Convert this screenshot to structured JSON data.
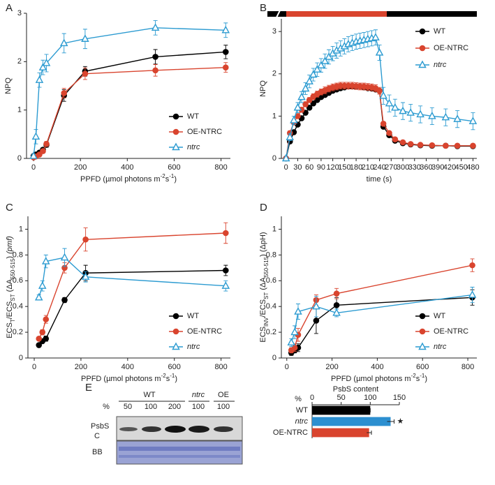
{
  "chart_data": [
    {
      "type": "line",
      "label": "A",
      "ylabel": [
        {
          "text": "NPQ"
        }
      ],
      "xlabel": [
        {
          "text": "PPFD (µmol photons m"
        },
        {
          "text": "-2",
          "sup": true
        },
        {
          "text": "s"
        },
        {
          "text": "-1",
          "sup": true
        },
        {
          "text": ")"
        }
      ],
      "x": [
        0,
        10,
        25,
        40,
        55,
        130,
        220,
        520,
        820
      ],
      "xlim": [
        -30,
        840
      ],
      "xticks": [
        0,
        200,
        400,
        600,
        800
      ],
      "ylim": [
        0,
        3
      ],
      "yticks": [
        0,
        1,
        2,
        3
      ],
      "legend": "lower right",
      "series": [
        {
          "name": "WT",
          "color": "#000000",
          "marker": "circle",
          "filled": true,
          "values": [
            0.05,
            0.08,
            0.12,
            0.18,
            0.28,
            1.3,
            1.8,
            2.1,
            2.2
          ],
          "errors": [
            0.02,
            0.02,
            0.03,
            0.04,
            0.05,
            0.12,
            0.1,
            0.15,
            0.14
          ]
        },
        {
          "name": "OE-NTRC",
          "color": "#d9442e",
          "marker": "circle",
          "filled": true,
          "values": [
            0.02,
            0.04,
            0.08,
            0.15,
            0.3,
            1.35,
            1.75,
            1.82,
            1.88
          ],
          "errors": [
            0.02,
            0.02,
            0.03,
            0.04,
            0.05,
            0.1,
            0.12,
            0.12,
            0.1
          ]
        },
        {
          "name": "ntrc",
          "italic": true,
          "color": "#2c9bd1",
          "marker": "triangle",
          "filled": false,
          "values": [
            0.05,
            0.45,
            1.62,
            1.88,
            1.97,
            2.38,
            2.47,
            2.7,
            2.65
          ],
          "errors": [
            0.03,
            0.15,
            0.15,
            0.15,
            0.18,
            0.2,
            0.2,
            0.15,
            0.15
          ]
        }
      ]
    },
    {
      "type": "line",
      "label": "B",
      "ylabel": [
        {
          "text": "NPQ"
        }
      ],
      "xlabel": [
        {
          "text": "time (s)"
        }
      ],
      "x": [
        0,
        10,
        20,
        30,
        40,
        50,
        60,
        70,
        80,
        90,
        100,
        110,
        120,
        130,
        140,
        150,
        160,
        170,
        180,
        190,
        200,
        210,
        220,
        230,
        240,
        250,
        265,
        280,
        300,
        320,
        345,
        375,
        410,
        440,
        480
      ],
      "xlim": [
        -12,
        490
      ],
      "xticks": [
        0,
        30,
        60,
        90,
        120,
        150,
        180,
        210,
        240,
        270,
        300,
        330,
        360,
        390,
        420,
        450,
        480
      ],
      "ylim": [
        0,
        3.3
      ],
      "yticks": [
        0,
        1,
        2,
        3
      ],
      "legend": "upper right",
      "series": [
        {
          "name": "WT",
          "color": "#000000",
          "marker": "circle",
          "filled": true,
          "values": [
            0,
            0.4,
            0.62,
            0.8,
            0.95,
            1.08,
            1.2,
            1.3,
            1.38,
            1.45,
            1.5,
            1.55,
            1.6,
            1.63,
            1.66,
            1.68,
            1.7,
            1.7,
            1.7,
            1.7,
            1.68,
            1.66,
            1.65,
            1.63,
            1.6,
            0.75,
            0.55,
            0.42,
            0.36,
            0.33,
            0.31,
            0.3,
            0.3,
            0.29,
            0.29
          ]
        },
        {
          "name": "OE-NTRC",
          "color": "#d9442e",
          "marker": "circle",
          "filled": true,
          "values": [
            0,
            0.6,
            0.85,
            1.0,
            1.15,
            1.28,
            1.38,
            1.46,
            1.52,
            1.57,
            1.61,
            1.65,
            1.68,
            1.7,
            1.72,
            1.72,
            1.72,
            1.72,
            1.71,
            1.7,
            1.7,
            1.69,
            1.68,
            1.66,
            1.6,
            0.82,
            0.6,
            0.45,
            0.38,
            0.34,
            0.32,
            0.31,
            0.3,
            0.3,
            0.3
          ],
          "errors": [
            0,
            0.05,
            0.05,
            0.05,
            0.06,
            0.06,
            0.06,
            0.07,
            0.07,
            0.07,
            0.08,
            0.08,
            0.08,
            0.08,
            0.08,
            0.08,
            0.08,
            0.08,
            0.08,
            0.08,
            0.08,
            0.08,
            0.08,
            0.08,
            0.08,
            0.05,
            0.04,
            0.04,
            0.03,
            0.03,
            0.03,
            0.03,
            0.03,
            0.03,
            0.03
          ]
        },
        {
          "name": "ntrc",
          "italic": true,
          "color": "#2c9bd1",
          "marker": "triangle",
          "filled": false,
          "values": [
            0,
            0.5,
            0.9,
            1.2,
            1.45,
            1.65,
            1.82,
            1.98,
            2.1,
            2.2,
            2.3,
            2.4,
            2.48,
            2.55,
            2.6,
            2.65,
            2.7,
            2.73,
            2.76,
            2.78,
            2.8,
            2.82,
            2.84,
            2.86,
            2.5,
            1.48,
            1.3,
            1.2,
            1.12,
            1.08,
            1.04,
            1.0,
            0.97,
            0.93,
            0.88
          ],
          "errors": [
            0,
            0.08,
            0.1,
            0.12,
            0.13,
            0.14,
            0.15,
            0.15,
            0.16,
            0.16,
            0.17,
            0.17,
            0.17,
            0.18,
            0.18,
            0.18,
            0.18,
            0.18,
            0.18,
            0.18,
            0.18,
            0.18,
            0.18,
            0.18,
            0.18,
            0.2,
            0.2,
            0.2,
            0.2,
            0.2,
            0.2,
            0.2,
            0.2,
            0.2,
            0.2
          ]
        }
      ]
    },
    {
      "type": "line",
      "label": "C",
      "ylabel": [
        {
          "text": "ECS"
        },
        {
          "text": "T",
          "sub": true
        },
        {
          "text": "/ECS"
        },
        {
          "text": "ST",
          "sub": true
        },
        {
          "text": " (ΔA"
        },
        {
          "text": "550-515",
          "sub": true
        },
        {
          "text": ") "
        },
        {
          "text": "(pmf)",
          "italic": true
        }
      ],
      "xlabel": [
        {
          "text": "PPFD (µmol photons m"
        },
        {
          "text": "-2",
          "sup": true
        },
        {
          "text": "s"
        },
        {
          "text": "-1",
          "sup": true
        },
        {
          "text": ")"
        }
      ],
      "x": [
        20,
        35,
        50,
        130,
        220,
        820
      ],
      "xlim": [
        -27,
        840
      ],
      "xticks": [
        0,
        200,
        400,
        600,
        800
      ],
      "ylim": [
        0,
        1.1
      ],
      "yticks": [
        0,
        0.2,
        0.4,
        0.6,
        0.8,
        1
      ],
      "legend": "lower right",
      "series": [
        {
          "name": "WT",
          "color": "#000000",
          "marker": "circle",
          "filled": true,
          "values": [
            0.1,
            0.13,
            0.15,
            0.45,
            0.66,
            0.68
          ],
          "errors": [
            0.01,
            0.01,
            0.02,
            0.02,
            0.06,
            0.04
          ]
        },
        {
          "name": "OE-NTRC",
          "color": "#d9442e",
          "marker": "circle",
          "filled": true,
          "values": [
            0.15,
            0.2,
            0.3,
            0.7,
            0.92,
            0.97
          ],
          "errors": [
            0.01,
            0.02,
            0.03,
            0.04,
            0.09,
            0.08
          ]
        },
        {
          "name": "ntrc",
          "italic": true,
          "color": "#2c9bd1",
          "marker": "triangle",
          "filled": false,
          "values": [
            0.47,
            0.56,
            0.75,
            0.78,
            0.63,
            0.56
          ],
          "errors": [
            0.02,
            0.04,
            0.05,
            0.07,
            0.04,
            0.04
          ]
        }
      ]
    },
    {
      "type": "line",
      "label": "D",
      "ylabel": [
        {
          "text": "ECS"
        },
        {
          "text": "INV",
          "sub": true
        },
        {
          "text": "/ECS"
        },
        {
          "text": "ST",
          "sub": true
        },
        {
          "text": " (ΔA"
        },
        {
          "text": "550-515",
          "sub": true
        },
        {
          "text": ") (ΔpH)"
        }
      ],
      "xlabel": [
        {
          "text": "PPFD (µmol photons m"
        },
        {
          "text": "-2",
          "sup": true
        },
        {
          "text": "s"
        },
        {
          "text": "-1",
          "sup": true
        },
        {
          "text": ")"
        }
      ],
      "x": [
        20,
        35,
        50,
        130,
        220,
        820
      ],
      "xlim": [
        -24,
        840
      ],
      "xticks": [
        0,
        200,
        400,
        600,
        800
      ],
      "ylim": [
        0,
        1.1
      ],
      "yticks": [
        0,
        0.2,
        0.4,
        0.6,
        0.8,
        1
      ],
      "legend": "lower right",
      "series": [
        {
          "name": "WT",
          "color": "#000000",
          "marker": "circle",
          "filled": true,
          "values": [
            0.04,
            0.06,
            0.08,
            0.29,
            0.41,
            0.47
          ],
          "errors": [
            0.02,
            0.02,
            0.03,
            0.1,
            0.06,
            0.06
          ]
        },
        {
          "name": "OE-NTRC",
          "color": "#d9442e",
          "marker": "circle",
          "filled": true,
          "values": [
            0.06,
            0.08,
            0.18,
            0.45,
            0.5,
            0.72
          ],
          "errors": [
            0.02,
            0.03,
            0.05,
            0.04,
            0.04,
            0.05
          ]
        },
        {
          "name": "ntrc",
          "italic": true,
          "color": "#2c9bd1",
          "marker": "triangle",
          "filled": false,
          "values": [
            0.12,
            0.2,
            0.36,
            0.4,
            0.35,
            0.49
          ],
          "errors": [
            0.03,
            0.05,
            0.06,
            0.08,
            0.03,
            0.06
          ]
        }
      ]
    },
    {
      "type": "hbar",
      "label": "E",
      "title": "PsbS content",
      "xlabel": "%",
      "categories": [
        "WT",
        "ntrc",
        "OE-NTRC"
      ],
      "category_italic": [
        false,
        true,
        false
      ],
      "values": [
        100,
        135,
        98
      ],
      "errors": [
        0,
        6,
        4
      ],
      "colors": [
        "#000000",
        "#2c8fd0",
        "#d9442e"
      ],
      "xlim": [
        0,
        150
      ],
      "xticks": [
        0,
        50,
        100,
        150
      ],
      "annotations": [
        {
          "text": "★",
          "category": 1
        }
      ]
    }
  ],
  "blot": {
    "percent_label": "%",
    "lanes": [
      "50",
      "100",
      "200",
      "100",
      "100"
    ],
    "groups": [
      "WT",
      "ntrc",
      "OE"
    ],
    "rows": [
      "PsbS",
      "C",
      "BB"
    ]
  }
}
